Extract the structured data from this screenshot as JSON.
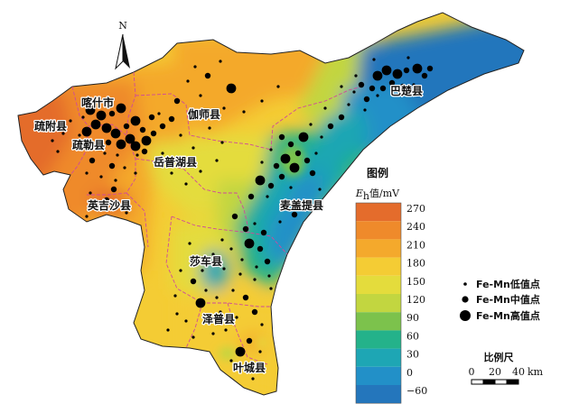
{
  "map": {
    "north_label": "N",
    "counties": [
      {
        "id": "kashi",
        "name": "喀什市"
      },
      {
        "id": "shufu",
        "name": "疏附县"
      },
      {
        "id": "shule",
        "name": "疏勒县"
      },
      {
        "id": "jiashi",
        "name": "伽师县"
      },
      {
        "id": "yuepuhu",
        "name": "岳普湖县"
      },
      {
        "id": "yingjisha",
        "name": "英吉沙县"
      },
      {
        "id": "maigaiti",
        "name": "麦盖提县"
      },
      {
        "id": "bachu",
        "name": "巴楚县"
      },
      {
        "id": "shache",
        "name": "莎车县"
      },
      {
        "id": "zepu",
        "name": "泽普县"
      },
      {
        "id": "yecheng",
        "name": "叶城县"
      }
    ]
  },
  "legend": {
    "title": "图例",
    "unit_main": "E",
    "unit_sub": "h",
    "unit_rest": "值/mV",
    "classes": [
      {
        "label": "270",
        "color": "#e46c2c"
      },
      {
        "label": "240",
        "color": "#ef8a2b"
      },
      {
        "label": "210",
        "color": "#f4a92c"
      },
      {
        "label": "180",
        "color": "#f4cc34"
      },
      {
        "label": "150",
        "color": "#e4dc3c"
      },
      {
        "label": "120",
        "color": "#c2d640"
      },
      {
        "label": "90",
        "color": "#7cc24c"
      },
      {
        "label": "60",
        "color": "#24b28a"
      },
      {
        "label": "30",
        "color": "#1ea6b4"
      },
      {
        "label": "0",
        "color": "#2290c8"
      },
      {
        "label": "−60",
        "color": "#2476bc"
      }
    ]
  },
  "point_legend": [
    {
      "label": "Fe-Mn低值点",
      "size": "small"
    },
    {
      "label": "Fe-Mn中值点",
      "size": "medium"
    },
    {
      "label": "Fe-Mn高值点",
      "size": "large"
    }
  ],
  "scale_bar": {
    "title": "比例尺",
    "ticks": [
      "0",
      "20",
      "40"
    ],
    "unit": "km"
  }
}
